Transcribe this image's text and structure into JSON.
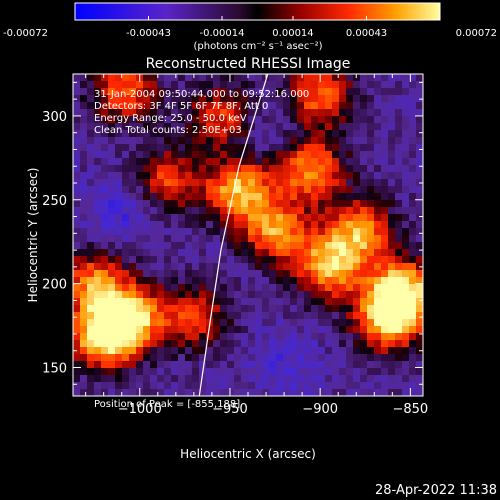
{
  "chart_data": {
    "type": "heatmap",
    "title": "Reconstructed RHESSI Image",
    "xlabel": "Heliocentric X (arcsec)",
    "ylabel": "Heliocentric Y (arcsec)",
    "xlim": [
      -1037,
      -843
    ],
    "ylim": [
      133,
      325
    ],
    "x_ticks": [
      -1000,
      -950,
      -900,
      -850
    ],
    "x_tick_labels": [
      "−1000",
      "−950",
      "−900",
      "−850"
    ],
    "y_ticks": [
      150,
      200,
      250,
      300
    ],
    "y_tick_labels": [
      "150",
      "200",
      "250",
      "300"
    ],
    "colorbar": {
      "range": [
        -0.00072,
        0.00072
      ],
      "tick_values": [
        -0.00072,
        -0.00043,
        -0.00014,
        0.00014,
        0.00043,
        0.00072
      ],
      "tick_labels": [
        "-0.00072",
        "-0.00043",
        "-0.00014",
        "0.00014",
        "0.00043",
        "0.00072"
      ],
      "unit_label": "(photons cm⁻² s⁻¹ asec⁻²)"
    },
    "bright_regions": [
      {
        "x": -1020,
        "y": 168,
        "value": 0.0007
      },
      {
        "x": -1005,
        "y": 180,
        "value": 0.0006
      },
      {
        "x": -1025,
        "y": 200,
        "value": 0.00045
      },
      {
        "x": -945,
        "y": 256,
        "value": 0.00058
      },
      {
        "x": -925,
        "y": 232,
        "value": 0.0005
      },
      {
        "x": -905,
        "y": 268,
        "value": 0.0005
      },
      {
        "x": -895,
        "y": 210,
        "value": 0.0006
      },
      {
        "x": -878,
        "y": 232,
        "value": 0.0005
      },
      {
        "x": -855,
        "y": 196,
        "value": 0.0007
      },
      {
        "x": -862,
        "y": 178,
        "value": 0.0006
      },
      {
        "x": -1008,
        "y": 315,
        "value": 0.0004
      },
      {
        "x": -985,
        "y": 262,
        "value": 0.0003
      },
      {
        "x": -900,
        "y": 312,
        "value": 0.0004
      },
      {
        "x": -955,
        "y": 300,
        "value": 0.0003
      },
      {
        "x": -970,
        "y": 180,
        "value": 0.0003
      }
    ],
    "dim_regions": [
      {
        "x": -1010,
        "y": 245,
        "value": -0.00045
      },
      {
        "x": -920,
        "y": 152,
        "value": -0.0004
      },
      {
        "x": -930,
        "y": 290,
        "value": -0.00035
      }
    ],
    "limb_curve": [
      [
        -929,
        325
      ],
      [
        -945,
        270
      ],
      [
        -955,
        220
      ],
      [
        -962,
        170
      ],
      [
        -967,
        133
      ]
    ],
    "info_lines": [
      "31-Jan-2004 09:50:44.000 to 09:52:16.000",
      "Detectors: 3F 4F 5F 6F 7F 8F, Att 0",
      "Energy Range: 25.0 - 50.0 keV",
      "Clean     Total counts: 2.50E+03"
    ],
    "peak_label": "Position of Peak = [-855,188]",
    "timestamp": "28-Apr-2022 11:38"
  }
}
